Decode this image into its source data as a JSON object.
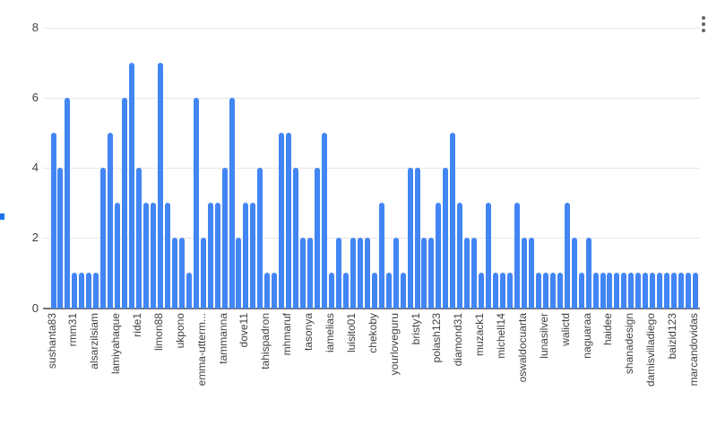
{
  "chart_data": {
    "type": "bar",
    "title": "",
    "xlabel": "",
    "ylabel": "",
    "n_bars": 91,
    "values": [
      5,
      4,
      6,
      1,
      1,
      1,
      1,
      4,
      5,
      3,
      6,
      7,
      4,
      3,
      3,
      7,
      3,
      2,
      2,
      1,
      6,
      2,
      3,
      3,
      4,
      6,
      2,
      3,
      3,
      4,
      1,
      1,
      5,
      5,
      4,
      2,
      2,
      4,
      5,
      1,
      2,
      1,
      2,
      2,
      2,
      1,
      3,
      1,
      2,
      1,
      4,
      4,
      2,
      2,
      3,
      4,
      5,
      3,
      2,
      2,
      1,
      3,
      1,
      1,
      1,
      3,
      2,
      2,
      1,
      1,
      1,
      1,
      3,
      2,
      1,
      2,
      1,
      1,
      1,
      1,
      1,
      1,
      1,
      1,
      1,
      1,
      1,
      1,
      1,
      1,
      1
    ],
    "x_tick_labels": [
      "sushanta83",
      "rmm31",
      "alsarzilsiam",
      "lamiyahaque",
      "ride1",
      "limon88",
      "ukpono",
      "emma-utterm...",
      "tammanna",
      "dove11",
      "tahispadron",
      "mhmaruf",
      "tasonya",
      "iamelias",
      "luisito01",
      "chekoby",
      "yourloveguru",
      "bristy1",
      "polash123",
      "diamond31",
      "muzack1",
      "michell14",
      "oswaldocuarta",
      "lunasilver",
      "walictd",
      "naguaraa",
      "haidee",
      "shanadesign",
      "damisvilladiego",
      "baizid123",
      "marcandovidas"
    ],
    "label_every_n": 3,
    "ylim": [
      0,
      8
    ],
    "yticks": [
      0,
      2,
      4,
      6,
      8
    ],
    "grid": true,
    "legend": "none",
    "bar_color": "#4285f4",
    "gridline_color": "#e6e6e6",
    "baseline_color": "#757575",
    "text_color": "#424242"
  },
  "menu": {
    "kebab_icon": "vertical-three-dots",
    "dot_color": "#5f6368"
  },
  "edge_handle": {
    "color": "#1a73e8"
  }
}
